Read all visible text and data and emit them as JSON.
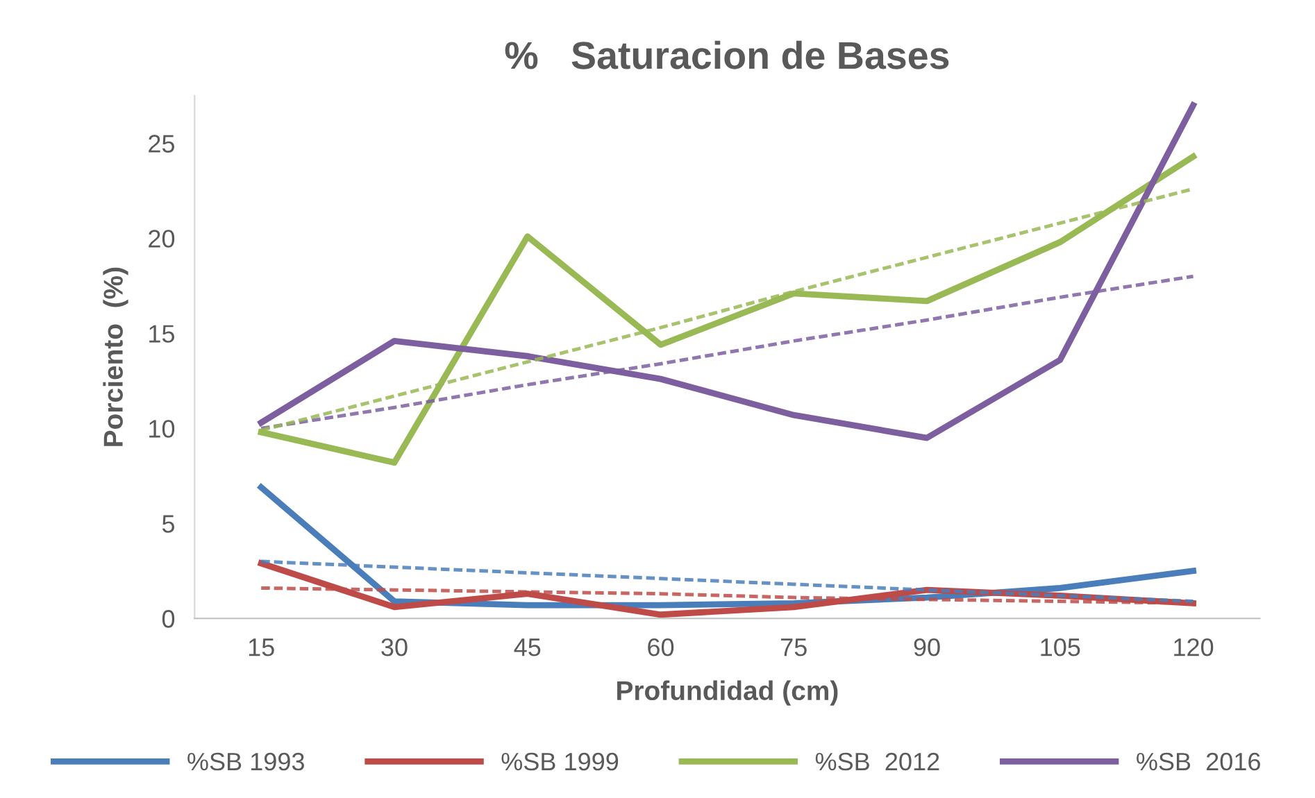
{
  "chart_data": {
    "type": "line",
    "title": "%   Saturacion de Bases",
    "xlabel": "Profundidad (cm)",
    "ylabel": "Porciento  (%)",
    "categories": [
      "15",
      "30",
      "45",
      "60",
      "75",
      "90",
      "105",
      "120"
    ],
    "series": [
      {
        "name": "%SB 1993",
        "color": "#4a7ebb",
        "values": [
          6.9,
          0.9,
          0.7,
          0.7,
          0.8,
          1.1,
          1.6,
          2.5
        ]
      },
      {
        "name": "%SB 1999",
        "color": "#be4b48",
        "values": [
          2.9,
          0.6,
          1.3,
          0.2,
          0.6,
          1.5,
          1.2,
          0.8
        ]
      },
      {
        "name": "%SB  2012",
        "color": "#98b954",
        "values": [
          9.8,
          8.2,
          20.1,
          14.4,
          17.1,
          16.7,
          19.8,
          24.3
        ]
      },
      {
        "name": "%SB  2016",
        "color": "#7d5fa0",
        "values": [
          10.3,
          14.6,
          13.8,
          12.6,
          10.7,
          9.5,
          13.6,
          27.0
        ]
      },
      {
        "color": "#4a7ebb",
        "line_style": "dashed",
        "values": [
          3.0,
          2.7,
          2.4,
          2.1,
          1.8,
          1.5,
          1.2,
          0.9
        ]
      },
      {
        "color": "#be4b48",
        "line_style": "dashed",
        "values": [
          1.6,
          1.5,
          1.4,
          1.3,
          1.1,
          1.0,
          0.9,
          0.8
        ]
      },
      {
        "color": "#98b954",
        "line_style": "dashed",
        "values": [
          9.9,
          11.7,
          13.5,
          15.3,
          17.2,
          19.0,
          20.8,
          22.6
        ]
      },
      {
        "color": "#7d5fa0",
        "line_style": "dashed",
        "values": [
          10.0,
          11.1,
          12.3,
          13.4,
          14.6,
          15.7,
          16.9,
          18.0
        ]
      }
    ],
    "ylim": [
      0,
      27.5
    ],
    "yticks": [
      0,
      5,
      10,
      15,
      20,
      25
    ],
    "grid": false,
    "legend": "bottom",
    "marker": "none",
    "line_style": "solid"
  }
}
